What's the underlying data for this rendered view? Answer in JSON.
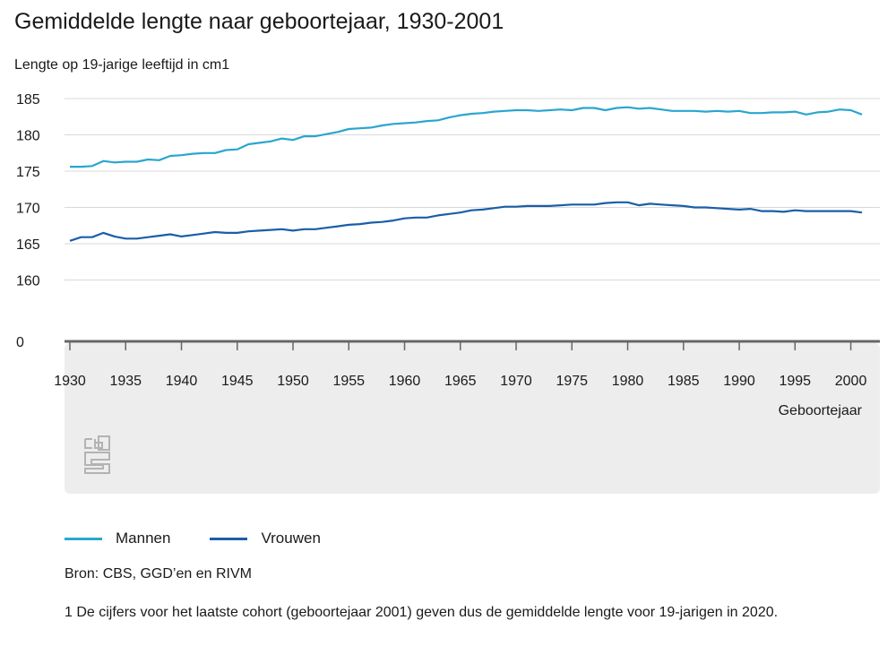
{
  "colors": {
    "mannen": "#2aa6cf",
    "vrouwen": "#1a5ea8",
    "grid": "#d9d9d9",
    "axis": "#666666",
    "panel": "#ededed",
    "logo": "#b3b3b3"
  },
  "footer": {
    "source": "Bron: CBS, GGD’en en RIVM",
    "footnote": "1 De cijfers voor het laatste cohort (geboortejaar 2001) geven dus de gemiddelde lengte voor 19-jarigen in 2020."
  },
  "chart_data": {
    "type": "line",
    "title": "Gemiddelde lengte naar geboortejaar, 1930-2001",
    "ylabel": "Lengte op 19-jarige leeftijd in cm1",
    "xlabel": "Geboortejaar",
    "y_ticks": [
      "185",
      "180",
      "175",
      "170",
      "165",
      "160",
      "0"
    ],
    "x_ticks": [
      "1930",
      "1935",
      "1940",
      "1945",
      "1950",
      "1955",
      "1960",
      "1965",
      "1970",
      "1975",
      "1980",
      "1985",
      "1990",
      "1995",
      "2000"
    ],
    "xlim": [
      1930,
      2001
    ],
    "ylim": [
      160,
      186
    ],
    "axis_break": "between 0 and 160",
    "grid": true,
    "legend_position": "bottom-left",
    "x": [
      1930,
      1931,
      1932,
      1933,
      1934,
      1935,
      1936,
      1937,
      1938,
      1939,
      1940,
      1941,
      1942,
      1943,
      1944,
      1945,
      1946,
      1947,
      1948,
      1949,
      1950,
      1951,
      1952,
      1953,
      1954,
      1955,
      1956,
      1957,
      1958,
      1959,
      1960,
      1961,
      1962,
      1963,
      1964,
      1965,
      1966,
      1967,
      1968,
      1969,
      1970,
      1971,
      1972,
      1973,
      1974,
      1975,
      1976,
      1977,
      1978,
      1979,
      1980,
      1981,
      1982,
      1983,
      1984,
      1985,
      1986,
      1987,
      1988,
      1989,
      1990,
      1991,
      1992,
      1993,
      1994,
      1995,
      1996,
      1997,
      1998,
      1999,
      2000,
      2001
    ],
    "series": [
      {
        "name": "Mannen",
        "color": "#2aa6cf",
        "values": [
          175.6,
          175.6,
          175.7,
          176.4,
          176.2,
          176.3,
          176.3,
          176.6,
          176.5,
          177.1,
          177.2,
          177.4,
          177.5,
          177.5,
          177.9,
          178.0,
          178.7,
          178.9,
          179.1,
          179.5,
          179.3,
          179.8,
          179.8,
          180.1,
          180.4,
          180.8,
          180.9,
          181.0,
          181.3,
          181.5,
          181.6,
          181.7,
          181.9,
          182.0,
          182.4,
          182.7,
          182.9,
          183.0,
          183.2,
          183.3,
          183.4,
          183.4,
          183.3,
          183.4,
          183.5,
          183.4,
          183.7,
          183.7,
          183.4,
          183.7,
          183.8,
          183.6,
          183.7,
          183.5,
          183.3,
          183.3,
          183.3,
          183.2,
          183.3,
          183.2,
          183.3,
          183.0,
          183.0,
          183.1,
          183.1,
          183.2,
          182.8,
          183.1,
          183.2,
          183.5,
          183.4,
          182.8
        ]
      },
      {
        "name": "Vrouwen",
        "color": "#1a5ea8",
        "values": [
          165.4,
          165.9,
          165.9,
          166.5,
          166.0,
          165.7,
          165.7,
          165.9,
          166.1,
          166.3,
          166.0,
          166.2,
          166.4,
          166.6,
          166.5,
          166.5,
          166.7,
          166.8,
          166.9,
          167.0,
          166.8,
          167.0,
          167.0,
          167.2,
          167.4,
          167.6,
          167.7,
          167.9,
          168.0,
          168.2,
          168.5,
          168.6,
          168.6,
          168.9,
          169.1,
          169.3,
          169.6,
          169.7,
          169.9,
          170.1,
          170.1,
          170.2,
          170.2,
          170.2,
          170.3,
          170.4,
          170.4,
          170.4,
          170.6,
          170.7,
          170.7,
          170.3,
          170.5,
          170.4,
          170.3,
          170.2,
          170.0,
          170.0,
          169.9,
          169.8,
          169.7,
          169.8,
          169.5,
          169.5,
          169.4,
          169.6,
          169.5,
          169.5,
          169.5,
          169.5,
          169.5,
          169.3
        ]
      }
    ]
  }
}
